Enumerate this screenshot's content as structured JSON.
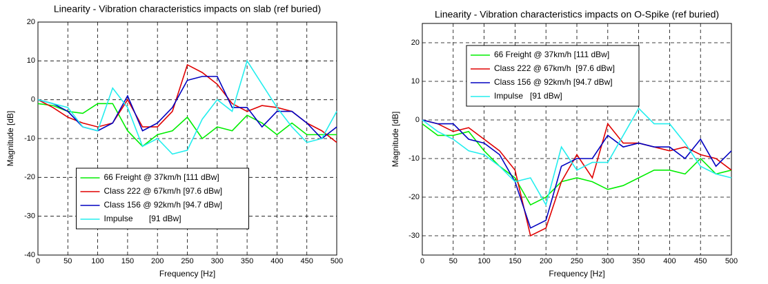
{
  "chart_data": [
    {
      "type": "line",
      "title": "Linearity - Vibration characteristics impacts on slab (ref buried)",
      "x_label": "Frequency [Hz]",
      "y_label": "Magnitude [dB]",
      "x": [
        0,
        25,
        50,
        75,
        100,
        125,
        150,
        175,
        200,
        225,
        250,
        275,
        300,
        325,
        350,
        375,
        400,
        425,
        450,
        475,
        500
      ],
      "xlim": [
        0,
        500
      ],
      "xticks": [
        0,
        50,
        100,
        150,
        200,
        250,
        300,
        350,
        400,
        450,
        500
      ],
      "ylim": [
        -40,
        20
      ],
      "yticks": [
        -40,
        -30,
        -20,
        -10,
        0,
        10,
        20
      ],
      "grid": true,
      "legend": "lower center",
      "series": [
        {
          "name": "66 Freight @ 37km/h [111 dBw]",
          "color": "#00ee00",
          "values": [
            -1,
            -1.5,
            -3,
            -3.5,
            -1,
            -1,
            -8,
            -12,
            -9,
            -8,
            -4.5,
            -10,
            -7,
            -8,
            -4,
            -6,
            -9,
            -6,
            -9,
            -9,
            -9
          ]
        },
        {
          "name": "Class 222 @ 67km/h [97.6 dBw]",
          "color": "#e00000",
          "values": [
            0,
            -2,
            -4.5,
            -6,
            -7,
            -6,
            0,
            -7,
            -7,
            -3,
            9,
            7,
            4,
            -1,
            -3,
            -1.5,
            -2,
            -3,
            -6,
            -8,
            -11
          ]
        },
        {
          "name": "Class 156 @ 92km/h [94.7 dBw]",
          "color": "#0000c0",
          "values": [
            0,
            -1,
            -3,
            -7,
            -8,
            -6,
            1,
            -8,
            -6,
            -2,
            5,
            6,
            6,
            -2,
            -2,
            -7,
            -3,
            -3,
            -6,
            -10,
            -7
          ]
        },
        {
          "name": "Impulse       [91 dBw]",
          "color": "#22eeee",
          "values": [
            0,
            -1,
            -2,
            -7,
            -8,
            3,
            -2,
            -12,
            -10,
            -14,
            -13,
            -5,
            0,
            -3,
            10,
            4,
            -2,
            -7,
            -11,
            -10,
            -3
          ]
        }
      ]
    },
    {
      "type": "line",
      "title": "Linearity - Vibration characteristics impacts on O-Spike (ref buried)",
      "x_label": "Frequency [Hz]",
      "y_label": "Magnitude [dB]",
      "x": [
        0,
        25,
        50,
        75,
        100,
        125,
        150,
        175,
        200,
        225,
        250,
        275,
        300,
        325,
        350,
        375,
        400,
        425,
        450,
        475,
        500
      ],
      "xlim": [
        0,
        500
      ],
      "xticks": [
        0,
        50,
        100,
        150,
        200,
        250,
        300,
        350,
        400,
        450,
        500
      ],
      "ylim": [
        -35,
        25
      ],
      "yticks": [
        -30,
        -20,
        -10,
        0,
        10,
        20
      ],
      "grid": true,
      "legend": "upper left",
      "series": [
        {
          "name": "66 Freight @ 37km/h [111 dBw]",
          "color": "#00ee00",
          "values": [
            -1,
            -4,
            -4,
            -3,
            -8,
            -12,
            -15,
            -22,
            -20,
            -16,
            -15,
            -16,
            -18,
            -17,
            -15,
            -13,
            -13,
            -14,
            -10,
            -14,
            -13
          ]
        },
        {
          "name": "Class 222 @ 67km/h  [97.6 dBw]",
          "color": "#e00000",
          "values": [
            0,
            -1,
            -3,
            -2,
            -5,
            -8,
            -13,
            -30,
            -28,
            -16,
            -9,
            -15,
            -1,
            -6,
            -6,
            -7,
            -8,
            -7,
            -9,
            -10,
            -13
          ]
        },
        {
          "name": "Class 156 @ 92km/h [94.7 dBw]",
          "color": "#0000c0",
          "values": [
            0,
            -1,
            -1,
            -5,
            -6,
            -9,
            -16,
            -28,
            -26,
            -12,
            -10,
            -10,
            -4,
            -7,
            -6,
            -7,
            -7,
            -10,
            -5,
            -12,
            -8
          ]
        },
        {
          "name": "Impulse   [91 dBw]",
          "color": "#22eeee",
          "values": [
            0,
            -3,
            -5,
            -8,
            -9,
            -12,
            -16,
            -15,
            -22,
            -7,
            -13,
            -11,
            -11,
            -4,
            3,
            -1,
            -1,
            -6,
            -12,
            -14,
            -15
          ]
        }
      ]
    }
  ]
}
